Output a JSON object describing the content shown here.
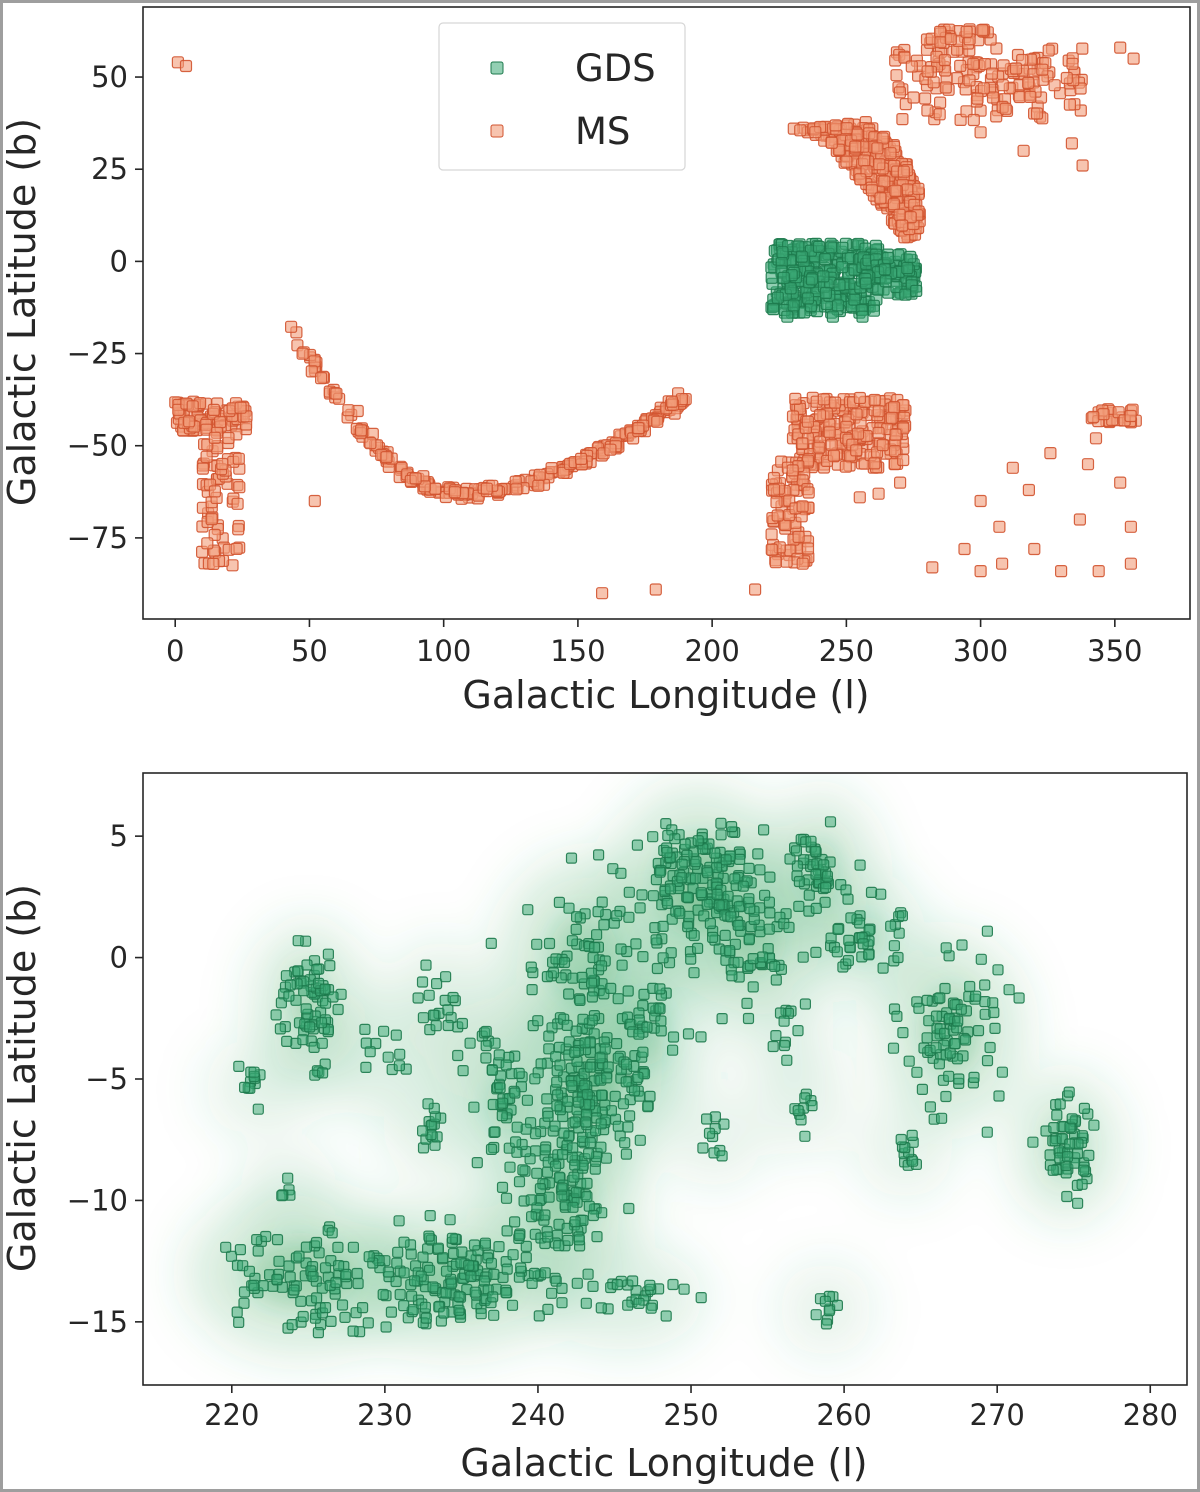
{
  "colors": {
    "gds_fill": "#3aa874",
    "gds_edge": "#1d7a4c",
    "ms_fill": "#f29c7a",
    "ms_edge": "#d2532f",
    "kde": "#2e9e57",
    "axis": "#262626"
  },
  "chart_data": [
    {
      "type": "scatter",
      "title": "",
      "xlabel": "Galactic Longitude (l)",
      "ylabel": "Galactic Latitude (b)",
      "xlim": [
        -12,
        378
      ],
      "ylim": [
        -97,
        69
      ],
      "xticks": [
        0,
        50,
        100,
        150,
        200,
        250,
        300,
        350
      ],
      "yticks": [
        50,
        25,
        0,
        -25,
        -50,
        -75
      ],
      "xtick_labels": [
        "0",
        "50",
        "100",
        "150",
        "200",
        "250",
        "300",
        "350"
      ],
      "ytick_labels": [
        "50",
        "25",
        "0",
        "−25",
        "−50",
        "−75"
      ],
      "legend": {
        "placement": "upper-center",
        "entries": [
          {
            "label": "GDS",
            "series": "GDS"
          },
          {
            "label": "MS",
            "series": "MS"
          }
        ]
      },
      "series": [
        {
          "name": "GDS",
          "regions": [
            {
              "kind": "blob",
              "l": [
                222,
                262
              ],
              "b": [
                -14,
                5
              ],
              "count": 300
            },
            {
              "kind": "blob",
              "l": [
                255,
                276
              ],
              "b": [
                -9,
                2
              ],
              "count": 90
            }
          ],
          "points": [
            [
              228,
              -15
            ],
            [
              245,
              -15
            ],
            [
              256,
              -15
            ],
            [
              272,
              -9
            ],
            [
              276,
              -8
            ]
          ]
        },
        {
          "name": "MS",
          "regions": [
            {
              "kind": "arc",
              "l": [
                42,
                190
              ],
              "b_min": -63,
              "b_ends": [
                -17,
                -37
              ],
              "count": 260
            },
            {
              "kind": "poly",
              "poly": [
                [
                  230,
                  36
                ],
                [
                  258,
                  38
                ],
                [
                  270,
                  30
                ],
                [
                  277,
                  20
                ],
                [
                  278,
                  8
                ],
                [
                  272,
                  6
                ],
                [
                  258,
                  20
                ],
                [
                  240,
                  34
                ]
              ],
              "count": 330
            },
            {
              "kind": "blob",
              "l": [
                268,
                338
              ],
              "b": [
                38,
                58
              ],
              "count": 150
            },
            {
              "kind": "blob",
              "l": [
                280,
                304
              ],
              "b": [
                59,
                63
              ],
              "count": 30
            },
            {
              "kind": "blob",
              "l": [
                230,
                272
              ],
              "b": [
                -56,
                -37
              ],
              "count": 220
            },
            {
              "kind": "blob",
              "l": [
                222,
                236
              ],
              "b": [
                -82,
                -54
              ],
              "count": 90
            },
            {
              "kind": "blob",
              "l": [
                0,
                27
              ],
              "b": [
                -46,
                -38
              ],
              "count": 90
            },
            {
              "kind": "blob",
              "l": [
                10,
                24
              ],
              "b": [
                -83,
                -46
              ],
              "count": 70
            },
            {
              "kind": "blob",
              "l": [
                340,
                358
              ],
              "b": [
                -44,
                -40
              ],
              "count": 25
            }
          ],
          "points": [
            [
              1,
              54
            ],
            [
              4,
              53
            ],
            [
              52,
              -65
            ],
            [
              159,
              -90
            ],
            [
              179,
              -89
            ],
            [
              216,
              -89
            ],
            [
              323,
              52
            ],
            [
              352,
              58
            ],
            [
              357,
              55
            ],
            [
              300,
              35
            ],
            [
              316,
              30
            ],
            [
              334,
              32
            ],
            [
              338,
              26
            ],
            [
              255,
              -64
            ],
            [
              262,
              -63
            ],
            [
              270,
              -60
            ],
            [
              282,
              -83
            ],
            [
              300,
              -84
            ],
            [
              308,
              -82
            ],
            [
              320,
              -78
            ],
            [
              330,
              -84
            ],
            [
              344,
              -84
            ],
            [
              356,
              -82
            ],
            [
              312,
              -56
            ],
            [
              318,
              -62
            ],
            [
              326,
              -52
            ],
            [
              337,
              -70
            ],
            [
              340,
              -55
            ],
            [
              343,
              -48
            ],
            [
              352,
              -60
            ],
            [
              356,
              -72
            ],
            [
              307,
              -72
            ],
            [
              294,
              -78
            ],
            [
              300,
              -65
            ]
          ]
        }
      ]
    },
    {
      "type": "scatter",
      "title": "",
      "xlabel": "Galactic Longitude (l)",
      "ylabel": "Galactic Latitude (b)",
      "xlim": [
        214.2,
        282.4
      ],
      "ylim": [
        -17.6,
        7.6
      ],
      "xticks": [
        220,
        230,
        240,
        250,
        260,
        270,
        280
      ],
      "yticks": [
        5,
        0,
        -5,
        -10,
        -15
      ],
      "xtick_labels": [
        "220",
        "230",
        "240",
        "250",
        "260",
        "270",
        "280"
      ],
      "ytick_labels": [
        "5",
        "0",
        "−5",
        "−10",
        "−15"
      ],
      "overlay": "kde density contours (green)",
      "series": [
        {
          "name": "GDS",
          "clusters": [
            {
              "l": 250.5,
              "b": 3.0,
              "sl": 2.2,
              "sb": 1.6,
              "count": 180
            },
            {
              "l": 243.5,
              "b": -5.2,
              "sl": 1.7,
              "sb": 1.6,
              "count": 170
            },
            {
              "l": 241.5,
              "b": -10.0,
              "sl": 1.8,
              "sb": 1.3,
              "count": 110
            },
            {
              "l": 234.5,
              "b": -13.2,
              "sl": 3.2,
              "sb": 1.0,
              "count": 150
            },
            {
              "l": 224.5,
              "b": -13.0,
              "sl": 3.0,
              "sb": 1.2,
              "count": 100
            },
            {
              "l": 245.5,
              "b": -14.0,
              "sl": 2.0,
              "sb": 0.6,
              "count": 30
            },
            {
              "l": 225.0,
              "b": -1.8,
              "sl": 1.0,
              "sb": 1.1,
              "count": 70
            },
            {
              "l": 258.5,
              "b": 3.5,
              "sl": 1.0,
              "sb": 1.2,
              "count": 55
            },
            {
              "l": 261.5,
              "b": 0.8,
              "sl": 1.1,
              "sb": 0.8,
              "count": 40
            },
            {
              "l": 267.0,
              "b": -3.0,
              "sl": 1.6,
              "sb": 1.5,
              "count": 90
            },
            {
              "l": 274.5,
              "b": -7.8,
              "sl": 0.9,
              "sb": 1.0,
              "count": 60
            },
            {
              "l": 243.0,
              "b": 0.0,
              "sl": 2.0,
              "sb": 1.6,
              "count": 70
            },
            {
              "l": 254.0,
              "b": 0.8,
              "sl": 1.5,
              "sb": 1.2,
              "count": 60
            },
            {
              "l": 247.0,
              "b": -3.0,
              "sl": 1.4,
              "sb": 1.3,
              "count": 40
            },
            {
              "l": 238.0,
              "b": -6.0,
              "sl": 1.2,
              "sb": 1.0,
              "count": 40
            },
            {
              "l": 233.5,
              "b": -2.0,
              "sl": 0.8,
              "sb": 0.9,
              "count": 20
            },
            {
              "l": 233.0,
              "b": -7.0,
              "sl": 0.5,
              "sb": 0.6,
              "count": 15
            },
            {
              "l": 221.3,
              "b": -5.4,
              "sl": 0.4,
              "sb": 0.4,
              "count": 12
            },
            {
              "l": 264.0,
              "b": -8.0,
              "sl": 0.4,
              "sb": 0.4,
              "count": 12
            },
            {
              "l": 258.8,
              "b": -14.5,
              "sl": 0.4,
              "sb": 0.3,
              "count": 10
            },
            {
              "l": 230.0,
              "b": -4.0,
              "sl": 0.7,
              "sb": 0.8,
              "count": 12
            },
            {
              "l": 237.0,
              "b": -3.5,
              "sl": 0.8,
              "sb": 0.7,
              "count": 12
            },
            {
              "l": 251.5,
              "b": -7.5,
              "sl": 0.4,
              "sb": 0.5,
              "count": 10
            },
            {
              "l": 257.3,
              "b": -6.0,
              "sl": 0.4,
              "sb": 0.6,
              "count": 10
            },
            {
              "l": 256.0,
              "b": -3.0,
              "sl": 0.4,
              "sb": 0.6,
              "count": 10
            },
            {
              "l": 225.8,
              "b": -4.5,
              "sl": 0.3,
              "sb": 0.4,
              "count": 6
            },
            {
              "l": 223.7,
              "b": -9.6,
              "sl": 0.2,
              "sb": 0.2,
              "count": 5
            }
          ]
        }
      ]
    }
  ]
}
